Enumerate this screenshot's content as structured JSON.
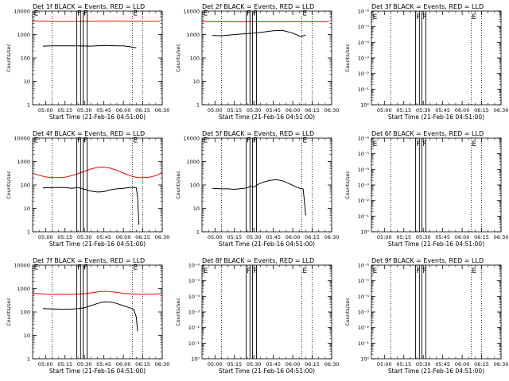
{
  "figure": {
    "x_label": "Start Time (21-Feb-16 04:51:00)",
    "y_label": "Counts/sec"
  },
  "chart_data": [
    {
      "id": "det1",
      "type": "line",
      "title": "Det 1f BLACK = Events, RED = LLD",
      "y_scale": "log",
      "ylim": [
        1,
        10000
      ],
      "yticks": [
        "1",
        "10",
        "100",
        "1000",
        "10000"
      ],
      "xticks": [
        "05:00",
        "05:15",
        "05:30",
        "05:45",
        "06:00",
        "06:15",
        "06:30"
      ],
      "xlim_minutes": [
        290,
        390
      ],
      "grid_x_minutes": [
        305,
        367,
        375
      ],
      "vertical_lines_minutes": [
        324,
        327,
        329,
        332
      ],
      "flags": [
        {
          "text": "E",
          "x_minute": 291,
          "y": 9000
        },
        {
          "text": "F",
          "x_minute": 324.5,
          "y": 9000
        },
        {
          "text": "F",
          "x_minute": 329.5,
          "y": 9000
        },
        {
          "text": "E",
          "x_minute": 367.5,
          "y": 9000
        }
      ],
      "series": [
        {
          "color": "#ff0000",
          "x_minutes": [
            290,
            300,
            310,
            320,
            330,
            340,
            350,
            360,
            370,
            380,
            388
          ],
          "values": [
            3800,
            3700,
            3600,
            3600,
            3650,
            3700,
            3750,
            3700,
            3650,
            3650,
            3700
          ]
        },
        {
          "color": "#000000",
          "x_minutes": [
            298,
            305,
            315,
            325,
            335,
            345,
            355,
            360,
            365,
            370
          ],
          "values": [
            320,
            330,
            330,
            330,
            320,
            340,
            330,
            330,
            300,
            270
          ]
        }
      ]
    },
    {
      "id": "det2",
      "type": "line",
      "title": "Det 2f BLACK = Events, RED = LLD",
      "y_scale": "log",
      "ylim": [
        1,
        10000
      ],
      "yticks": [
        "1",
        "10",
        "100",
        "1000",
        "10000"
      ],
      "xticks": [
        "05:00",
        "05:15",
        "05:30",
        "05:45",
        "06:00",
        "06:15",
        "06:30"
      ],
      "xlim_minutes": [
        290,
        390
      ],
      "grid_x_minutes": [
        305,
        367,
        375
      ],
      "vertical_lines_minutes": [
        324,
        327,
        329,
        332
      ],
      "flags": [
        {
          "text": "E",
          "x_minute": 291,
          "y": 9000
        },
        {
          "text": "F",
          "x_minute": 324.5,
          "y": 9000
        },
        {
          "text": "F",
          "x_minute": 329.5,
          "y": 9000
        },
        {
          "text": "E",
          "x_minute": 367.5,
          "y": 9000
        }
      ],
      "series": [
        {
          "color": "#ff0000",
          "x_minutes": [
            290,
            300,
            310,
            320,
            330,
            340,
            350,
            360,
            370,
            380,
            388
          ],
          "values": [
            3600,
            3550,
            3550,
            3500,
            3550,
            3550,
            3500,
            3550,
            3550,
            3500,
            3550
          ]
        },
        {
          "color": "#000000",
          "x_minutes": [
            298,
            305,
            312,
            320,
            330,
            338,
            345,
            352,
            360,
            366,
            370
          ],
          "values": [
            920,
            880,
            960,
            1050,
            1150,
            1280,
            1450,
            1500,
            1150,
            820,
            950
          ]
        }
      ]
    },
    {
      "id": "det3",
      "type": "line",
      "title": "Det 3f BLACK = Events, RED = LLD",
      "y_scale": "log",
      "ylim": [
        1e-06,
        1
      ],
      "yticks": [
        "10⁰",
        "10⁻¹",
        "10⁻²",
        "10⁻³",
        "10⁻⁴",
        "10⁻⁵",
        "10⁻⁶"
      ],
      "xticks": [
        "05:00",
        "05:15",
        "05:30",
        "05:45",
        "06:00",
        "06:15",
        "06:30"
      ],
      "xlim_minutes": [
        290,
        390
      ],
      "grid_x_minutes": [
        305,
        367,
        375
      ],
      "vertical_lines_minutes": [
        324,
        327,
        329,
        332
      ],
      "flags": [
        {
          "text": "E",
          "x_minute": 291,
          "y": 0.5
        },
        {
          "text": "F",
          "x_minute": 324.5,
          "y": 0.5
        },
        {
          "text": "F",
          "x_minute": 329.5,
          "y": 0.5
        },
        {
          "text": "E",
          "x_minute": 367.5,
          "y": 0.5
        }
      ],
      "series": []
    },
    {
      "id": "det4",
      "type": "line",
      "title": "Det 4f BLACK = Events, RED = LLD",
      "y_scale": "log",
      "ylim": [
        1,
        10000
      ],
      "yticks": [
        "1",
        "10",
        "100",
        "1000",
        "10000"
      ],
      "xticks": [
        "05:00",
        "05:15",
        "05:30",
        "05:45",
        "06:00",
        "06:15",
        "06:30"
      ],
      "xlim_minutes": [
        290,
        390
      ],
      "grid_x_minutes": [
        305,
        367,
        375
      ],
      "vertical_lines_minutes": [
        324,
        327,
        329,
        332
      ],
      "flags": [
        {
          "text": "E",
          "x_minute": 291,
          "y": 9000
        },
        {
          "text": "F",
          "x_minute": 324.5,
          "y": 9000
        },
        {
          "text": "F",
          "x_minute": 329.5,
          "y": 9000
        },
        {
          "text": "E",
          "x_minute": 367.5,
          "y": 9000
        }
      ],
      "series": [
        {
          "color": "#ff0000",
          "x_minutes": [
            290,
            295,
            300,
            305,
            310,
            315,
            320,
            325,
            330,
            335,
            340,
            345,
            350,
            355,
            360,
            365,
            370,
            375,
            380,
            385,
            390
          ],
          "values": [
            320,
            260,
            220,
            205,
            205,
            215,
            250,
            300,
            380,
            480,
            560,
            580,
            520,
            420,
            320,
            250,
            210,
            205,
            215,
            250,
            340
          ]
        },
        {
          "color": "#000000",
          "x_minutes": [
            298,
            305,
            315,
            320,
            325,
            330,
            335,
            340,
            345,
            350,
            355,
            360,
            365,
            368,
            370,
            371,
            372
          ],
          "values": [
            75,
            78,
            78,
            72,
            78,
            65,
            55,
            50,
            52,
            62,
            68,
            72,
            78,
            80,
            75,
            30,
            2
          ]
        }
      ]
    },
    {
      "id": "det5",
      "type": "line",
      "title": "Det 5f BLACK = Events, RED = LLD",
      "y_scale": "log",
      "ylim": [
        1,
        10000
      ],
      "yticks": [
        "1",
        "10",
        "100",
        "1000",
        "10000"
      ],
      "xticks": [
        "05:00",
        "05:15",
        "05:30",
        "05:45",
        "06:00",
        "06:15",
        "06:30"
      ],
      "xlim_minutes": [
        290,
        390
      ],
      "grid_x_minutes": [
        305,
        367,
        375
      ],
      "vertical_lines_minutes": [
        324,
        327,
        329,
        332
      ],
      "flags": [
        {
          "text": "E",
          "x_minute": 291,
          "y": 9000
        },
        {
          "text": "F",
          "x_minute": 324.5,
          "y": 9000
        },
        {
          "text": "F",
          "x_minute": 329.5,
          "y": 9000
        },
        {
          "text": "E",
          "x_minute": 367.5,
          "y": 9000
        }
      ],
      "series": [
        {
          "color": "#000000",
          "x_minutes": [
            298,
            305,
            310,
            315,
            320,
            325,
            328,
            330,
            333,
            337,
            342,
            347,
            352,
            357,
            362,
            366,
            368,
            369,
            370
          ],
          "values": [
            72,
            68,
            68,
            65,
            70,
            75,
            90,
            80,
            105,
            130,
            155,
            170,
            150,
            115,
            85,
            70,
            68,
            20,
            5
          ]
        }
      ]
    },
    {
      "id": "det6",
      "type": "line",
      "title": "Det 6f BLACK = Events, RED = LLD",
      "y_scale": "log",
      "ylim": [
        1e-06,
        1
      ],
      "yticks": [
        "10⁰",
        "10⁻¹",
        "10⁻²",
        "10⁻³",
        "10⁻⁴",
        "10⁻⁵",
        "10⁻⁶"
      ],
      "xticks": [
        "05:00",
        "05:15",
        "05:30",
        "05:45",
        "06:00",
        "06:15",
        "06:30"
      ],
      "xlim_minutes": [
        290,
        390
      ],
      "grid_x_minutes": [
        305,
        367,
        375
      ],
      "vertical_lines_minutes": [
        324,
        327,
        329,
        332
      ],
      "flags": [
        {
          "text": "E",
          "x_minute": 291,
          "y": 0.5
        },
        {
          "text": "F",
          "x_minute": 324.5,
          "y": 0.5
        },
        {
          "text": "F",
          "x_minute": 329.5,
          "y": 0.5
        },
        {
          "text": "E",
          "x_minute": 367.5,
          "y": 0.5
        }
      ],
      "series": []
    },
    {
      "id": "det7",
      "type": "line",
      "title": "Det 7f BLACK = Events, RED = LLD",
      "y_scale": "log",
      "ylim": [
        1,
        10000
      ],
      "yticks": [
        "1",
        "10",
        "100",
        "1000",
        "10000"
      ],
      "xticks": [
        "05:00",
        "05:15",
        "05:30",
        "05:45",
        "06:00",
        "06:15",
        "06:30"
      ],
      "xlim_minutes": [
        290,
        390
      ],
      "grid_x_minutes": [
        305,
        367,
        375
      ],
      "vertical_lines_minutes": [
        324,
        327,
        329,
        332
      ],
      "flags": [
        {
          "text": "E",
          "x_minute": 291,
          "y": 9000
        },
        {
          "text": "F",
          "x_minute": 324.5,
          "y": 9000
        },
        {
          "text": "F",
          "x_minute": 329.5,
          "y": 9000
        },
        {
          "text": "E",
          "x_minute": 367.5,
          "y": 9000
        }
      ],
      "series": [
        {
          "color": "#ff0000",
          "x_minutes": [
            290,
            300,
            310,
            320,
            330,
            335,
            340,
            345,
            350,
            355,
            360,
            370,
            380,
            390
          ],
          "values": [
            620,
            580,
            560,
            560,
            600,
            650,
            720,
            760,
            740,
            680,
            620,
            580,
            570,
            600
          ]
        },
        {
          "color": "#000000",
          "x_minutes": [
            298,
            305,
            315,
            320,
            325,
            330,
            335,
            340,
            345,
            350,
            355,
            360,
            365,
            368,
            370,
            371
          ],
          "values": [
            140,
            135,
            130,
            132,
            138,
            150,
            185,
            230,
            270,
            265,
            230,
            185,
            150,
            130,
            60,
            15
          ]
        }
      ]
    },
    {
      "id": "det8",
      "type": "line",
      "title": "Det 8f BLACK = Events, RED = LLD",
      "y_scale": "log",
      "ylim": [
        1e-06,
        1
      ],
      "yticks": [
        "10⁰",
        "10⁻¹",
        "10⁻²",
        "10⁻³",
        "10⁻⁴",
        "10⁻⁵",
        "10⁻⁶"
      ],
      "xticks": [
        "05:00",
        "05:15",
        "05:30",
        "05:45",
        "06:00",
        "06:15",
        "06:30"
      ],
      "xlim_minutes": [
        290,
        390
      ],
      "grid_x_minutes": [
        305,
        367,
        375
      ],
      "vertical_lines_minutes": [
        324,
        327,
        329,
        332
      ],
      "flags": [
        {
          "text": "E",
          "x_minute": 291,
          "y": 0.5
        },
        {
          "text": "F",
          "x_minute": 324.5,
          "y": 0.5
        },
        {
          "text": "F",
          "x_minute": 329.5,
          "y": 0.5
        },
        {
          "text": "E",
          "x_minute": 367.5,
          "y": 0.5
        }
      ],
      "series": []
    },
    {
      "id": "det9",
      "type": "line",
      "title": "Det 9f BLACK = Events, RED = LLD",
      "y_scale": "log",
      "ylim": [
        1e-06,
        1
      ],
      "yticks": [
        "10⁰",
        "10⁻¹",
        "10⁻²",
        "10⁻³",
        "10⁻⁴",
        "10⁻⁵",
        "10⁻⁶"
      ],
      "xticks": [
        "05:00",
        "05:15",
        "05:30",
        "05:45",
        "06:00",
        "06:15",
        "06:30"
      ],
      "xlim_minutes": [
        290,
        390
      ],
      "grid_x_minutes": [
        305,
        367,
        375
      ],
      "vertical_lines_minutes": [
        324,
        327,
        329,
        332
      ],
      "flags": [
        {
          "text": "E",
          "x_minute": 291,
          "y": 0.5
        },
        {
          "text": "F",
          "x_minute": 324.5,
          "y": 0.5
        },
        {
          "text": "F",
          "x_minute": 329.5,
          "y": 0.5
        },
        {
          "text": "E",
          "x_minute": 367.5,
          "y": 0.5
        }
      ],
      "series": []
    }
  ]
}
